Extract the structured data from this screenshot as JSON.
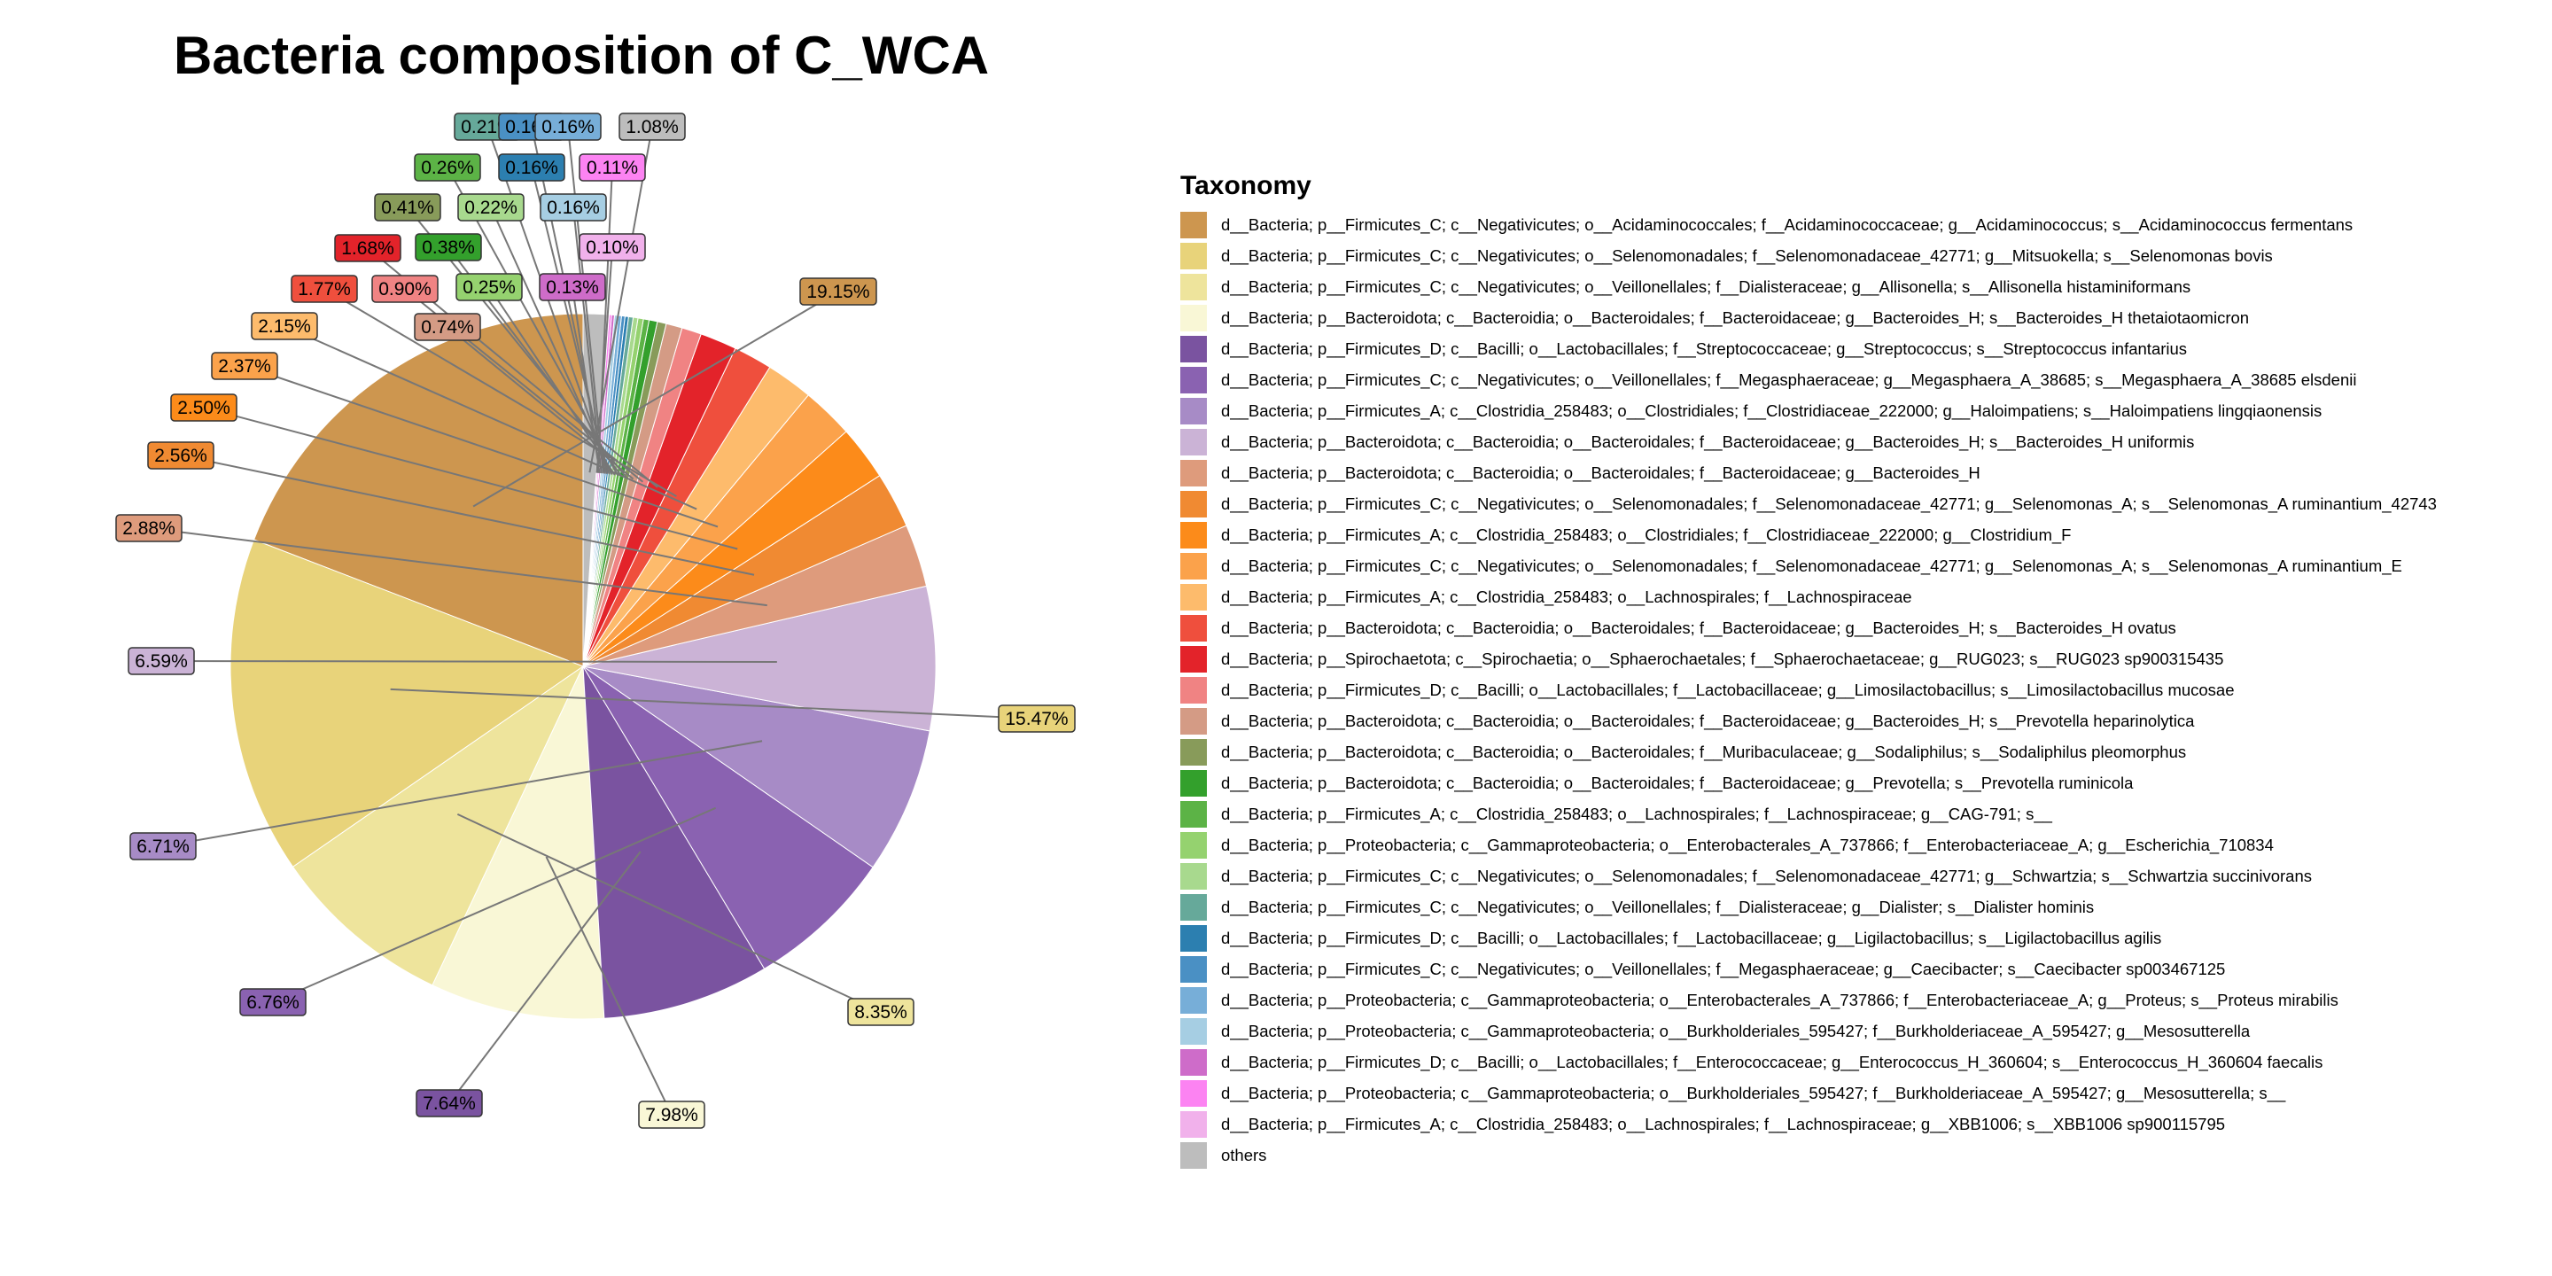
{
  "chart_data": {
    "type": "pie",
    "title": "Bacteria composition of C_WCA",
    "legend_title": "Taxonomy",
    "legend_position": "right",
    "slices": [
      {
        "label": "d__Bacteria; p__Firmicutes_C; c__Negativicutes; o__Acidaminococcales; f__Acidaminococcaceae; g__Acidaminococcus; s__Acidaminococcus fermentans",
        "value": 19.15,
        "text": "19.15%",
        "color": "#CD964F"
      },
      {
        "label": "d__Bacteria; p__Firmicutes_C; c__Negativicutes; o__Selenomonadales; f__Selenomonadaceae_42771; g__Mitsuokella; s__Selenomonas bovis",
        "value": 15.47,
        "text": "15.47%",
        "color": "#E8D37A"
      },
      {
        "label": "d__Bacteria; p__Firmicutes_C; c__Negativicutes; o__Veillonellales; f__Dialisteraceae; g__Allisonella; s__Allisonella histaminiformans",
        "value": 8.35,
        "text": "8.35%",
        "color": "#EEE49C"
      },
      {
        "label": "d__Bacteria; p__Bacteroidota; c__Bacteroidia; o__Bacteroidales; f__Bacteroidaceae; g__Bacteroides_H; s__Bacteroides_H thetaiotaomicron",
        "value": 7.98,
        "text": "7.98%",
        "color": "#F9F7D6"
      },
      {
        "label": "d__Bacteria; p__Firmicutes_D; c__Bacilli; o__Lactobacillales; f__Streptococcaceae; g__Streptococcus; s__Streptococcus infantarius",
        "value": 7.64,
        "text": "7.64%",
        "color": "#7A53A0"
      },
      {
        "label": "d__Bacteria; p__Firmicutes_C; c__Negativicutes; o__Veillonellales; f__Megasphaeraceae; g__Megasphaera_A_38685; s__Megasphaera_A_38685 elsdenii",
        "value": 6.76,
        "text": "6.76%",
        "color": "#8A62B1"
      },
      {
        "label": "d__Bacteria; p__Firmicutes_A; c__Clostridia_258483; o__Clostridiales; f__Clostridiaceae_222000; g__Haloimpatiens; s__Haloimpatiens lingqiaonensis",
        "value": 6.71,
        "text": "6.71%",
        "color": "#A78BC6"
      },
      {
        "label": "d__Bacteria; p__Bacteroidota; c__Bacteroidia; o__Bacteroidales; f__Bacteroidaceae; g__Bacteroides_H; s__Bacteroides_H uniformis",
        "value": 6.59,
        "text": "6.59%",
        "color": "#CBB3D6"
      },
      {
        "label": "d__Bacteria; p__Bacteroidota; c__Bacteroidia; o__Bacteroidales; f__Bacteroidaceae; g__Bacteroides_H",
        "value": 2.88,
        "text": "2.88%",
        "color": "#DE9B7C"
      },
      {
        "label": "d__Bacteria; p__Firmicutes_C; c__Negativicutes; o__Selenomonadales; f__Selenomonadaceae_42771; g__Selenomonas_A; s__Selenomonas_A ruminantium_42743",
        "value": 2.56,
        "text": "2.56%",
        "color": "#F08A32"
      },
      {
        "label": "d__Bacteria; p__Firmicutes_A; c__Clostridia_258483; o__Clostridiales; f__Clostridiaceae_222000; g__Clostridium_F",
        "value": 2.5,
        "text": "2.50%",
        "color": "#FC8B1A"
      },
      {
        "label": "d__Bacteria; p__Firmicutes_C; c__Negativicutes; o__Selenomonadales; f__Selenomonadaceae_42771; g__Selenomonas_A; s__Selenomonas_A ruminantium_E",
        "value": 2.37,
        "text": "2.37%",
        "color": "#FBA24B"
      },
      {
        "label": "d__Bacteria; p__Firmicutes_A; c__Clostridia_258483; o__Lachnospirales; f__Lachnospiraceae",
        "value": 2.15,
        "text": "2.15%",
        "color": "#FDBB6C"
      },
      {
        "label": "d__Bacteria; p__Bacteroidota; c__Bacteroidia; o__Bacteroidales; f__Bacteroidaceae; g__Bacteroides_H; s__Bacteroides_H ovatus",
        "value": 1.77,
        "text": "1.77%",
        "color": "#EF4F3D"
      },
      {
        "label": "d__Bacteria; p__Spirochaetota; c__Spirochaetia; o__Sphaerochaetales; f__Sphaerochaetaceae; g__RUG023; s__RUG023 sp900315435",
        "value": 1.68,
        "text": "1.68%",
        "color": "#E3232A"
      },
      {
        "label": "d__Bacteria; p__Firmicutes_D; c__Bacilli; o__Lactobacillales; f__Lactobacillaceae; g__Limosilactobacillus; s__Limosilactobacillus mucosae",
        "value": 0.9,
        "text": "0.90%",
        "color": "#F08383"
      },
      {
        "label": "d__Bacteria; p__Bacteroidota; c__Bacteroidia; o__Bacteroidales; f__Bacteroidaceae; g__Bacteroides_H; s__Prevotella heparinolytica",
        "value": 0.74,
        "text": "0.74%",
        "color": "#D49B85"
      },
      {
        "label": "d__Bacteria; p__Bacteroidota; c__Bacteroidia; o__Bacteroidales; f__Muribaculaceae; g__Sodaliphilus; s__Sodaliphilus pleomorphus",
        "value": 0.41,
        "text": "0.41%",
        "color": "#889B5A"
      },
      {
        "label": "d__Bacteria; p__Bacteroidota; c__Bacteroidia; o__Bacteroidales; f__Bacteroidaceae; g__Prevotella; s__Prevotella ruminicola",
        "value": 0.38,
        "text": "0.38%",
        "color": "#33A02C"
      },
      {
        "label": "d__Bacteria; p__Firmicutes_A; c__Clostridia_258483; o__Lachnospirales; f__Lachnospiraceae; g__CAG-791; s__",
        "value": 0.26,
        "text": "0.26%",
        "color": "#5CB346"
      },
      {
        "label": "d__Bacteria; p__Proteobacteria; c__Gammaproteobacteria; o__Enterobacterales_A_737866; f__Enterobacteriaceae_A; g__Escherichia_710834",
        "value": 0.25,
        "text": "0.25%",
        "color": "#95D26F"
      },
      {
        "label": "d__Bacteria; p__Firmicutes_C; c__Negativicutes; o__Selenomonadales; f__Selenomonadaceae_42771; g__Schwartzia; s__Schwartzia succinivorans",
        "value": 0.22,
        "text": "0.22%",
        "color": "#A8D98E"
      },
      {
        "label": "d__Bacteria; p__Firmicutes_C; c__Negativicutes; o__Veillonellales; f__Dialisteraceae; g__Dialister; s__Dialister hominis",
        "value": 0.21,
        "text": "0.21%",
        "color": "#66A99A"
      },
      {
        "label": "d__Bacteria; p__Firmicutes_D; c__Bacilli; o__Lactobacillales; f__Lactobacillaceae; g__Ligilactobacillus; s__Ligilactobacillus agilis",
        "value": 0.16,
        "text": "0.16%",
        "color": "#2C7FB0"
      },
      {
        "label": "d__Bacteria; p__Firmicutes_C; c__Negativicutes; o__Veillonellales; f__Megasphaeraceae; g__Caecibacter; s__Caecibacter sp003467125",
        "value": 0.16,
        "text": "0.16%",
        "color": "#4A90C4"
      },
      {
        "label": "d__Bacteria; p__Proteobacteria; c__Gammaproteobacteria; o__Enterobacterales_A_737866; f__Enterobacteriaceae_A; g__Proteus; s__Proteus mirabilis",
        "value": 0.16,
        "text": "0.16%",
        "color": "#77AED8"
      },
      {
        "label": "d__Bacteria; p__Proteobacteria; c__Gammaproteobacteria; o__Burkholderiales_595427; f__Burkholderiaceae_A_595427; g__Mesosutterella",
        "value": 0.16,
        "text": "0.16%",
        "color": "#A6CEE3"
      },
      {
        "label": "d__Bacteria; p__Firmicutes_D; c__Bacilli; o__Lactobacillales; f__Enterococcaceae; g__Enterococcus_H_360604; s__Enterococcus_H_360604 faecalis",
        "value": 0.13,
        "text": "0.13%",
        "color": "#CE6CC9"
      },
      {
        "label": "d__Bacteria; p__Proteobacteria; c__Gammaproteobacteria; o__Burkholderiales_595427; f__Burkholderiaceae_A_595427; g__Mesosutterella; s__",
        "value": 0.11,
        "text": "0.11%",
        "color": "#FC83F2"
      },
      {
        "label": "d__Bacteria; p__Firmicutes_A; c__Clostridia_258483; o__Lachnospirales; f__Lachnospiraceae; g__XBB1006; s__XBB1006 sp900115795",
        "value": 0.1,
        "text": "0.10%",
        "color": "#F1B1EB"
      },
      {
        "label": "others",
        "value": 1.08,
        "text": "1.08%",
        "color": "#BDBDBD"
      }
    ]
  }
}
